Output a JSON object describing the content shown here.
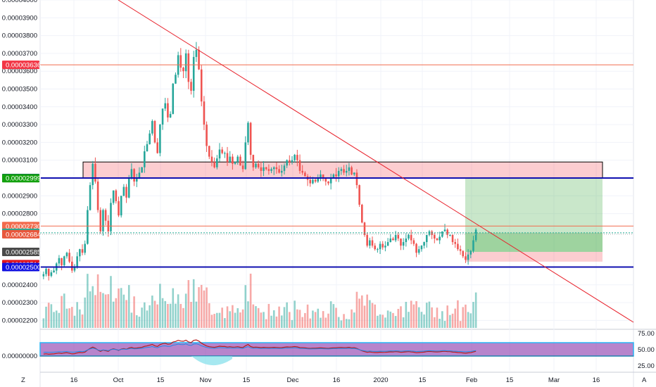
{
  "chart_data": {
    "type": "candlestick",
    "y_axis": {
      "ticks": [
        "0.00004000",
        "0.00003900",
        "0.00003800",
        "0.00003700",
        "0.00003600",
        "0.00003500",
        "0.00003400",
        "0.00003300",
        "0.00003200",
        "0.00003100",
        "0.00002900",
        "0.00002800",
        "0.00002400",
        "0.00002300",
        "0.00002200"
      ],
      "ylim": [
        2.15e-05,
        4e-05
      ]
    },
    "x_axis": {
      "ticks": [
        "16",
        "Oct",
        "15",
        "Nov",
        "15",
        "Dec",
        "16",
        "2020",
        "15",
        "Feb",
        "15",
        "Mar",
        "16"
      ]
    },
    "price_tags": [
      {
        "label": "0.00003636",
        "value": 3.636e-05,
        "color": "#f23645"
      },
      {
        "label": "0.00003000",
        "value": 3e-05,
        "color": "#1010e0"
      },
      {
        "label": "0.00002999",
        "value": 2.999e-05,
        "color": "#13a10e"
      },
      {
        "label": "0.00002730",
        "value": 2.73e-05,
        "color": "#f26b4d"
      },
      {
        "label": "0.00002692",
        "value": 2.692e-05,
        "color": "#22ab94"
      },
      {
        "label": "0.00002684",
        "value": 2.684e-05,
        "color": "#e8573c"
      },
      {
        "label": "0.00002585",
        "value": 2.585e-05,
        "color": "#4a4a4a"
      },
      {
        "label": "0.00002516",
        "value": 2.516e-05,
        "color": "#e0161e"
      },
      {
        "label": "0.00002500",
        "value": 2.5e-05,
        "color": "#1010e0"
      }
    ],
    "horizontal_lines": [
      {
        "value": 3.636e-05,
        "color": "#f26b4d"
      },
      {
        "value": 3e-05,
        "color": "#1010b0"
      },
      {
        "value": 2.73e-05,
        "color": "#f26b4d"
      },
      {
        "value": 2.5e-05,
        "color": "#1010b0"
      }
    ],
    "closes": [
      2.46e-05,
      2.49e-05,
      2.45e-05,
      2.47e-05,
      2.48e-05,
      2.52e-05,
      2.55e-05,
      2.51e-05,
      2.56e-05,
      2.58e-05,
      2.53e-05,
      2.48e-05,
      2.5e-05,
      2.56e-05,
      2.6e-05,
      2.58e-05,
      2.63e-05,
      2.82e-05,
      2.96e-05,
      3.08e-05,
      2.98e-05,
      2.82e-05,
      2.7e-05,
      2.82e-05,
      2.76e-05,
      2.7e-05,
      2.86e-05,
      2.93e-05,
      2.87e-05,
      2.79e-05,
      2.9e-05,
      2.95e-05,
      2.89e-05,
      3e-05,
      3.05e-05,
      2.98e-05,
      3e-05,
      3.03e-05,
      3.06e-05,
      3.15e-05,
      3.19e-05,
      3.25e-05,
      3.32e-05,
      3.2e-05,
      3.14e-05,
      3.3e-05,
      3.39e-05,
      3.42e-05,
      3.34e-05,
      3.36e-05,
      3.53e-05,
      3.58e-05,
      3.69e-05,
      3.62e-05,
      3.6e-05,
      3.7e-05,
      3.54e-05,
      3.49e-05,
      3.68e-05,
      3.72e-05,
      3.61e-05,
      3.43e-05,
      3.3e-05,
      3.18e-05,
      3.12e-05,
      3.09e-05,
      3.06e-05,
      3.11e-05,
      3.16e-05,
      3.14e-05,
      3.14e-05,
      3.09e-05,
      3.12e-05,
      3.08e-05,
      3.09e-05,
      3.12e-05,
      3.07e-05,
      3.05e-05,
      3.2e-05,
      3.31e-05,
      3.13e-05,
      3.06e-05,
      3.08e-05,
      3.06e-05,
      3.04e-05,
      3.06e-05,
      3.05e-05,
      3.04e-05,
      3.05e-05,
      3.06e-05,
      3.05e-05,
      3.03e-05,
      3.04e-05,
      3.07e-05,
      3.1e-05,
      3.09e-05,
      3.1e-05,
      3.13e-05,
      3.1e-05,
      3.04e-05,
      3.03e-05,
      3.01e-05,
      2.99e-05,
      2.97e-05,
      2.99e-05,
      2.98e-05,
      3e-05,
      3.02e-05,
      3e-05,
      2.98e-05,
      2.97e-05,
      3e-05,
      3.02e-05,
      3.01e-05,
      3.04e-05,
      3.05e-05,
      3.03e-05,
      3.04e-05,
      3.06e-05,
      3.02e-05,
      3.03e-05,
      2.96e-05,
      2.85e-05,
      2.75e-05,
      2.68e-05,
      2.62e-05,
      2.65e-05,
      2.62e-05,
      2.6e-05,
      2.6e-05,
      2.63e-05,
      2.61e-05,
      2.62e-05,
      2.64e-05,
      2.66e-05,
      2.65e-05,
      2.68e-05,
      2.66e-05,
      2.62e-05,
      2.64e-05,
      2.66e-05,
      2.68e-05,
      2.65e-05,
      2.63e-05,
      2.58e-05,
      2.6e-05,
      2.62e-05,
      2.64e-05,
      2.68e-05,
      2.7e-05,
      2.68e-05,
      2.66e-05,
      2.65e-05,
      2.67e-05,
      2.7e-05,
      2.71e-05,
      2.68e-05,
      2.68e-05,
      2.64e-05,
      2.63e-05,
      2.6e-05,
      2.59e-05,
      2.56e-05,
      2.54e-05,
      2.57e-05,
      2.59e-05,
      2.65e-05,
      2.71e-05
    ]
  }
}
